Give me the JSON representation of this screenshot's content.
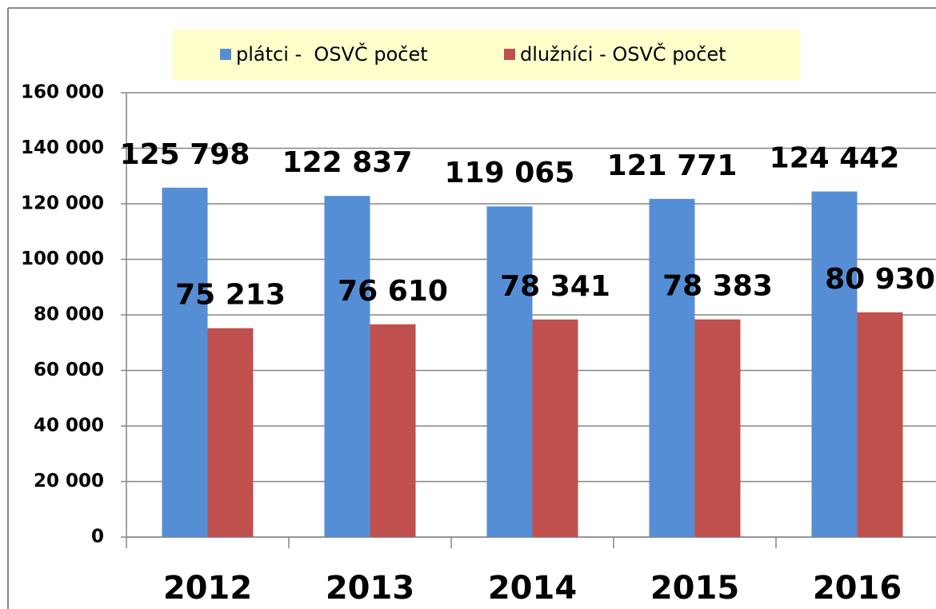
{
  "chart_data": {
    "type": "bar",
    "categories": [
      "2012",
      "2013",
      "2014",
      "2015",
      "2016"
    ],
    "series": [
      {
        "name": "plátci -  OSVČ počet",
        "color": "#558ed5",
        "values": [
          125798,
          122837,
          119065,
          121771,
          124442
        ],
        "value_labels": [
          "125 798",
          "122 837",
          "119 065",
          "121 771",
          "124 442"
        ]
      },
      {
        "name": "dlužníci - OSVČ počet",
        "color": "#c0504d",
        "values": [
          75213,
          76610,
          78341,
          78383,
          80930
        ],
        "value_labels": [
          "75 213",
          "76 610",
          "78 341",
          "78 383",
          "80 930"
        ]
      }
    ],
    "ylim": [
      0,
      160000
    ],
    "yticks": [
      {
        "value": 0,
        "label": "0"
      },
      {
        "value": 20000,
        "label": "20 000"
      },
      {
        "value": 40000,
        "label": "40 000"
      },
      {
        "value": 60000,
        "label": "60 000"
      },
      {
        "value": 80000,
        "label": "80 000"
      },
      {
        "value": 100000,
        "label": "100 000"
      },
      {
        "value": 120000,
        "label": "120 000"
      },
      {
        "value": 140000,
        "label": "140 000"
      },
      {
        "value": 160000,
        "label": "160 000"
      }
    ],
    "grid": true,
    "legend": "top"
  }
}
